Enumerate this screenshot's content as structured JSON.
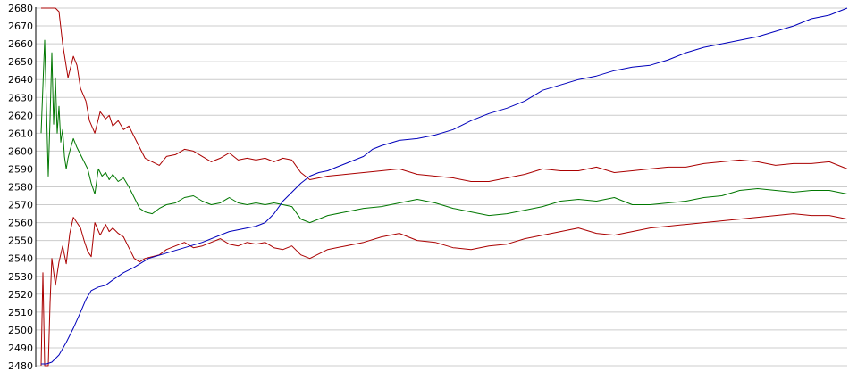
{
  "chart_data": {
    "type": "line",
    "title": "",
    "xlabel": "",
    "ylabel": "",
    "ylim": [
      2480,
      2680
    ],
    "xlim": [
      0,
      450
    ],
    "grid": true,
    "legend": "none",
    "y_ticks": [
      "2480",
      "2490",
      "2500",
      "2510",
      "2520",
      "2530",
      "2540",
      "2550",
      "2560",
      "2570",
      "2580",
      "2590",
      "2600",
      "2610",
      "2620",
      "2630",
      "2640",
      "2650",
      "2660",
      "2670",
      "2680"
    ],
    "colors": {
      "upper_band": "#aa0000",
      "lower_band": "#aa0000",
      "middle": "#007700",
      "trend": "#0000bb",
      "grid": "#cccccc",
      "axis": "#000000"
    },
    "series": [
      {
        "key": "upper_band",
        "x": [
          0,
          5,
          8,
          10,
          12,
          15,
          18,
          20,
          22,
          25,
          27,
          30,
          33,
          36,
          38,
          40,
          43,
          46,
          49,
          52,
          55,
          58,
          62,
          66,
          70,
          75,
          80,
          85,
          90,
          95,
          100,
          105,
          110,
          115,
          120,
          125,
          130,
          135,
          140,
          145,
          150,
          160,
          170,
          180,
          190,
          200,
          210,
          220,
          230,
          240,
          250,
          260,
          270,
          280,
          290,
          300,
          310,
          320,
          330,
          340,
          350,
          360,
          370,
          380,
          390,
          400,
          410,
          420,
          430,
          440,
          450
        ],
        "y": [
          2680,
          2680,
          2680,
          2678,
          2660,
          2641,
          2653,
          2648,
          2635,
          2628,
          2617,
          2610,
          2622,
          2618,
          2620,
          2614,
          2617,
          2612,
          2614,
          2608,
          2602,
          2596,
          2594,
          2592,
          2597,
          2598,
          2601,
          2600,
          2597,
          2594,
          2596,
          2599,
          2595,
          2596,
          2595,
          2596,
          2594,
          2596,
          2595,
          2588,
          2584,
          2586,
          2587,
          2588,
          2589,
          2590,
          2587,
          2586,
          2585,
          2583,
          2583,
          2585,
          2587,
          2590,
          2589,
          2589,
          2591,
          2588,
          2589,
          2590,
          2591,
          2591,
          2593,
          2594,
          2595,
          2594,
          2592,
          2593,
          2593,
          2594,
          2590
        ]
      },
      {
        "key": "middle",
        "x": [
          0,
          2,
          4,
          5,
          6,
          7,
          8,
          9,
          10,
          11,
          12,
          13,
          14,
          15,
          16,
          18,
          20,
          22,
          24,
          26,
          28,
          30,
          32,
          34,
          36,
          38,
          40,
          43,
          46,
          49,
          52,
          55,
          58,
          62,
          66,
          70,
          75,
          80,
          85,
          90,
          95,
          100,
          105,
          110,
          115,
          120,
          125,
          130,
          135,
          140,
          145,
          150,
          160,
          170,
          180,
          190,
          200,
          210,
          220,
          230,
          240,
          250,
          260,
          270,
          280,
          290,
          300,
          310,
          320,
          330,
          340,
          350,
          360,
          370,
          380,
          390,
          400,
          410,
          420,
          430,
          440,
          450
        ],
        "y": [
          2610,
          2662,
          2586,
          2618,
          2655,
          2615,
          2641,
          2610,
          2625,
          2605,
          2612,
          2597,
          2590,
          2596,
          2600,
          2607,
          2602,
          2598,
          2594,
          2590,
          2582,
          2576,
          2590,
          2586,
          2588,
          2584,
          2587,
          2583,
          2585,
          2580,
          2574,
          2568,
          2566,
          2565,
          2568,
          2570,
          2571,
          2574,
          2575,
          2572,
          2570,
          2571,
          2574,
          2571,
          2570,
          2571,
          2570,
          2571,
          2570,
          2569,
          2562,
          2560,
          2564,
          2566,
          2568,
          2569,
          2571,
          2573,
          2571,
          2568,
          2566,
          2564,
          2565,
          2567,
          2569,
          2572,
          2573,
          2572,
          2574,
          2570,
          2570,
          2571,
          2572,
          2574,
          2575,
          2578,
          2579,
          2578,
          2577,
          2578,
          2578,
          2576
        ]
      },
      {
        "key": "lower_band",
        "x": [
          0,
          1,
          2,
          3,
          4,
          5,
          6,
          8,
          10,
          12,
          14,
          16,
          18,
          20,
          22,
          24,
          26,
          28,
          30,
          33,
          36,
          38,
          40,
          43,
          46,
          49,
          52,
          55,
          58,
          62,
          66,
          70,
          75,
          80,
          85,
          90,
          95,
          100,
          105,
          110,
          115,
          120,
          125,
          130,
          135,
          140,
          145,
          150,
          160,
          170,
          180,
          190,
          200,
          210,
          220,
          230,
          240,
          250,
          260,
          270,
          280,
          290,
          300,
          310,
          320,
          330,
          340,
          350,
          360,
          370,
          380,
          390,
          400,
          410,
          420,
          430,
          440,
          450
        ],
        "y": [
          2480,
          2532,
          2480,
          2480,
          2480,
          2515,
          2540,
          2525,
          2538,
          2547,
          2537,
          2554,
          2563,
          2560,
          2557,
          2550,
          2544,
          2541,
          2560,
          2553,
          2559,
          2555,
          2557,
          2554,
          2552,
          2546,
          2540,
          2538,
          2540,
          2541,
          2542,
          2545,
          2547,
          2549,
          2546,
          2547,
          2549,
          2551,
          2548,
          2547,
          2549,
          2548,
          2549,
          2546,
          2545,
          2547,
          2542,
          2540,
          2545,
          2547,
          2549,
          2552,
          2554,
          2550,
          2549,
          2546,
          2545,
          2547,
          2548,
          2551,
          2553,
          2555,
          2557,
          2554,
          2553,
          2555,
          2557,
          2558,
          2559,
          2560,
          2561,
          2562,
          2563,
          2564,
          2565,
          2564,
          2564,
          2562
        ]
      },
      {
        "key": "trend",
        "x": [
          0,
          3,
          6,
          10,
          14,
          18,
          22,
          25,
          28,
          32,
          36,
          40,
          46,
          52,
          60,
          70,
          80,
          90,
          100,
          105,
          110,
          115,
          120,
          125,
          130,
          135,
          140,
          145,
          150,
          155,
          160,
          165,
          170,
          175,
          180,
          185,
          190,
          200,
          210,
          220,
          230,
          240,
          250,
          260,
          270,
          280,
          290,
          300,
          310,
          320,
          330,
          340,
          350,
          360,
          370,
          380,
          390,
          400,
          410,
          420,
          430,
          440,
          450
        ],
        "y": [
          2481,
          2481,
          2482,
          2486,
          2493,
          2501,
          2510,
          2517,
          2522,
          2524,
          2525,
          2528,
          2532,
          2535,
          2540,
          2543,
          2546,
          2549,
          2553,
          2555,
          2556,
          2557,
          2558,
          2560,
          2565,
          2572,
          2577,
          2582,
          2586,
          2588,
          2589,
          2591,
          2593,
          2595,
          2597,
          2601,
          2603,
          2606,
          2607,
          2609,
          2612,
          2617,
          2621,
          2624,
          2628,
          2634,
          2637,
          2640,
          2642,
          2645,
          2647,
          2648,
          2651,
          2655,
          2658,
          2660,
          2662,
          2664,
          2667,
          2670,
          2674,
          2676,
          2680
        ]
      }
    ]
  }
}
